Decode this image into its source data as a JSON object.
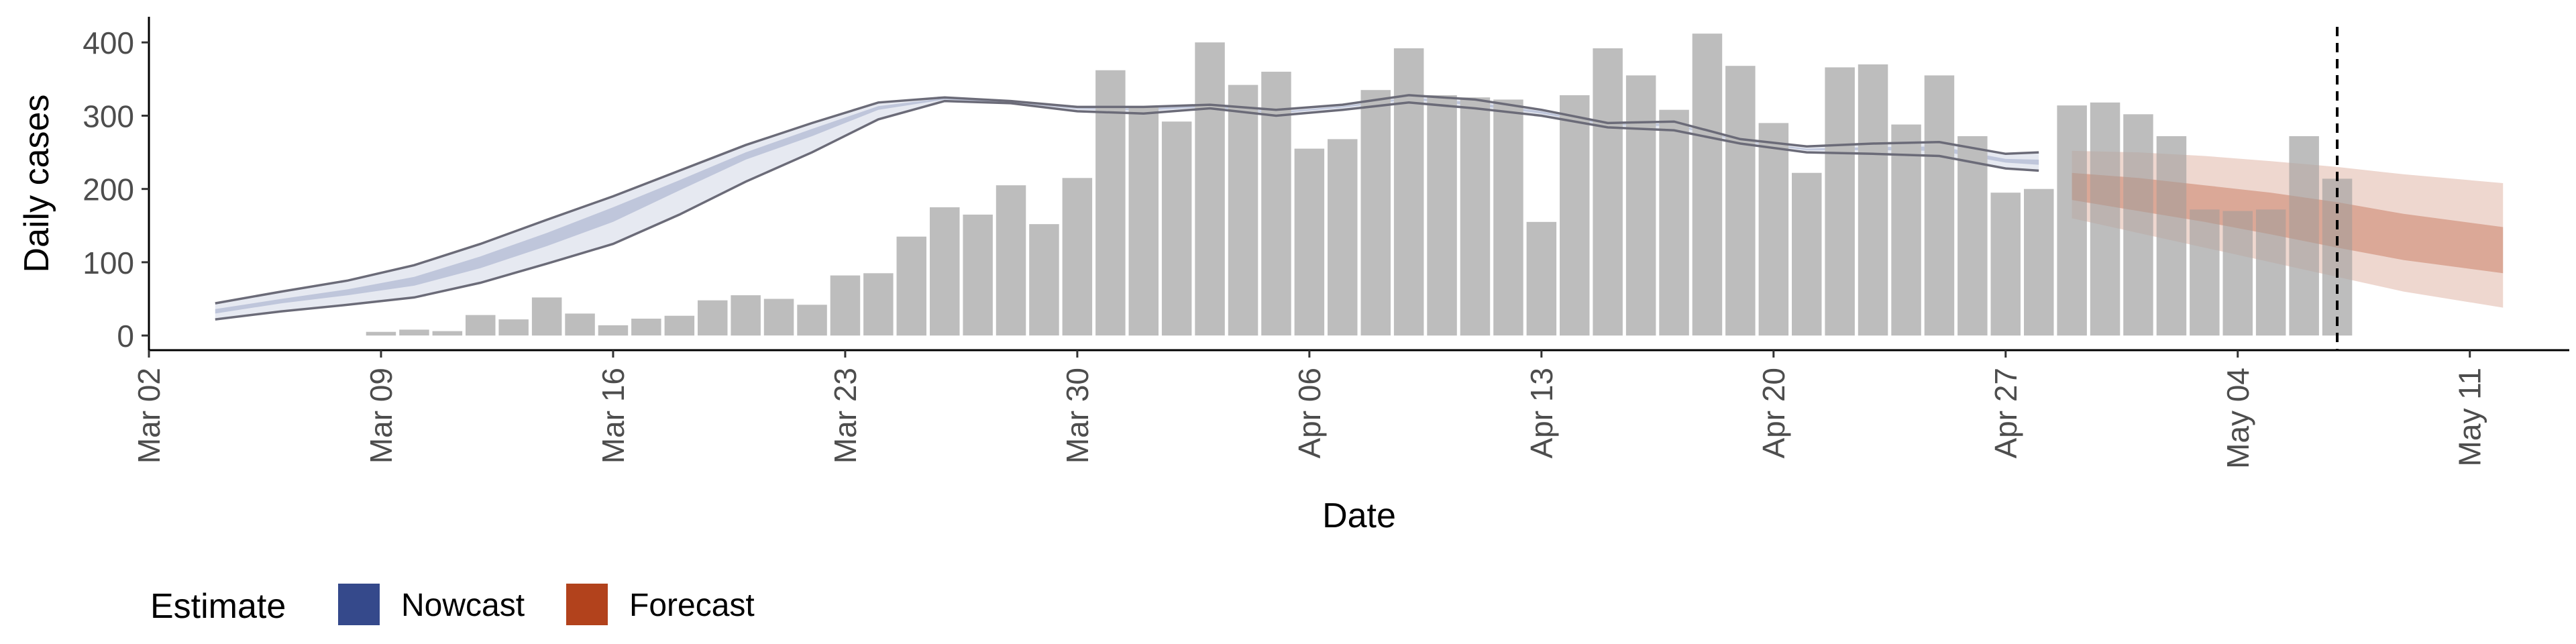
{
  "chart_data": {
    "type": "bar",
    "xlabel": "Date",
    "ylabel": "Daily cases",
    "ylim": [
      -20,
      435
    ],
    "xlim": [
      "2020-03-02",
      "2020-05-14"
    ],
    "yticks": [
      0,
      100,
      200,
      300,
      400
    ],
    "xticks": [
      "2020-03-02",
      "2020-03-09",
      "2020-03-16",
      "2020-03-23",
      "2020-03-30",
      "2020-04-06",
      "2020-04-13",
      "2020-04-20",
      "2020-04-27",
      "2020-05-04",
      "2020-05-11"
    ],
    "xtick_labels": [
      "Mar 02",
      "Mar 09",
      "Mar 16",
      "Mar 23",
      "Mar 30",
      "Apr 06",
      "Apr 13",
      "Apr 20",
      "Apr 27",
      "May 04",
      "May 11"
    ],
    "grid": false,
    "vline_date": "2020-05-07",
    "bar_color": "#bdbdbd",
    "bars": {
      "dates": [
        "2020-03-09",
        "2020-03-10",
        "2020-03-11",
        "2020-03-12",
        "2020-03-13",
        "2020-03-14",
        "2020-03-15",
        "2020-03-16",
        "2020-03-17",
        "2020-03-18",
        "2020-03-19",
        "2020-03-20",
        "2020-03-21",
        "2020-03-22",
        "2020-03-23",
        "2020-03-24",
        "2020-03-25",
        "2020-03-26",
        "2020-03-27",
        "2020-03-28",
        "2020-03-29",
        "2020-03-30",
        "2020-03-31",
        "2020-04-01",
        "2020-04-02",
        "2020-04-03",
        "2020-04-04",
        "2020-04-05",
        "2020-04-06",
        "2020-04-07",
        "2020-04-08",
        "2020-04-09",
        "2020-04-10",
        "2020-04-11",
        "2020-04-12",
        "2020-04-13",
        "2020-04-14",
        "2020-04-15",
        "2020-04-16",
        "2020-04-17",
        "2020-04-18",
        "2020-04-19",
        "2020-04-20",
        "2020-04-21",
        "2020-04-22",
        "2020-04-23",
        "2020-04-24",
        "2020-04-25",
        "2020-04-26",
        "2020-04-27",
        "2020-04-28",
        "2020-04-29",
        "2020-04-30",
        "2020-05-01",
        "2020-05-02",
        "2020-05-03",
        "2020-05-04",
        "2020-05-05",
        "2020-05-06",
        "2020-05-07"
      ],
      "values": [
        5,
        8,
        6,
        28,
        22,
        52,
        30,
        14,
        23,
        27,
        48,
        55,
        50,
        42,
        82,
        85,
        135,
        175,
        165,
        205,
        152,
        215,
        362,
        312,
        292,
        400,
        342,
        360,
        255,
        268,
        335,
        392,
        328,
        325,
        322,
        155,
        328,
        392,
        355,
        308,
        412,
        368,
        290,
        222,
        366,
        370,
        288,
        355,
        272,
        195,
        200,
        314,
        318,
        302,
        272,
        172,
        170,
        172,
        272,
        214
      ]
    },
    "series": [
      {
        "name": "Nowcast",
        "color": "#35498b",
        "dates": [
          "2020-03-04",
          "2020-03-06",
          "2020-03-08",
          "2020-03-10",
          "2020-03-12",
          "2020-03-14",
          "2020-03-16",
          "2020-03-18",
          "2020-03-20",
          "2020-03-22",
          "2020-03-24",
          "2020-03-26",
          "2020-03-28",
          "2020-03-30",
          "2020-04-01",
          "2020-04-03",
          "2020-04-05",
          "2020-04-07",
          "2020-04-09",
          "2020-04-11",
          "2020-04-13",
          "2020-04-15",
          "2020-04-17",
          "2020-04-19",
          "2020-04-21",
          "2020-04-23",
          "2020-04-25",
          "2020-04-27",
          "2020-04-28"
        ],
        "lower_90": [
          22,
          33,
          42,
          52,
          72,
          98,
          125,
          165,
          210,
          250,
          295,
          320,
          317,
          306,
          303,
          310,
          300,
          308,
          318,
          310,
          300,
          284,
          280,
          262,
          250,
          248,
          245,
          228,
          225
        ],
        "upper_90": [
          44,
          60,
          75,
          96,
          125,
          158,
          190,
          225,
          260,
          290,
          318,
          325,
          320,
          312,
          312,
          315,
          308,
          315,
          328,
          322,
          308,
          290,
          292,
          268,
          258,
          262,
          264,
          248,
          250
        ],
        "lower_50": [
          30,
          44,
          55,
          68,
          92,
          122,
          155,
          198,
          240,
          272,
          308,
          322,
          318,
          309,
          307,
          312,
          303,
          311,
          322,
          314,
          303,
          287,
          286,
          265,
          253,
          253,
          252,
          236,
          233
        ],
        "upper_50": [
          36,
          50,
          63,
          80,
          108,
          140,
          175,
          212,
          250,
          282,
          313,
          324,
          319,
          310,
          310,
          314,
          305,
          313,
          325,
          318,
          306,
          288,
          289,
          266,
          255,
          257,
          258,
          241,
          240
        ]
      },
      {
        "name": "Forecast",
        "color": "#b2421c",
        "dates": [
          "2020-04-29",
          "2020-05-01",
          "2020-05-03",
          "2020-05-05",
          "2020-05-07",
          "2020-05-09",
          "2020-05-12"
        ],
        "lower_90": [
          160,
          140,
          120,
          100,
          80,
          60,
          38
        ],
        "upper_90": [
          252,
          250,
          245,
          238,
          230,
          220,
          208
        ],
        "lower_50": [
          185,
          170,
          155,
          138,
          120,
          103,
          85
        ],
        "upper_50": [
          222,
          215,
          205,
          195,
          182,
          166,
          148
        ]
      }
    ],
    "legend": {
      "title": "Estimate",
      "position": "bottom-left",
      "items": [
        {
          "label": "Nowcast",
          "color": "#35498b"
        },
        {
          "label": "Forecast",
          "color": "#b2421c"
        }
      ]
    }
  }
}
